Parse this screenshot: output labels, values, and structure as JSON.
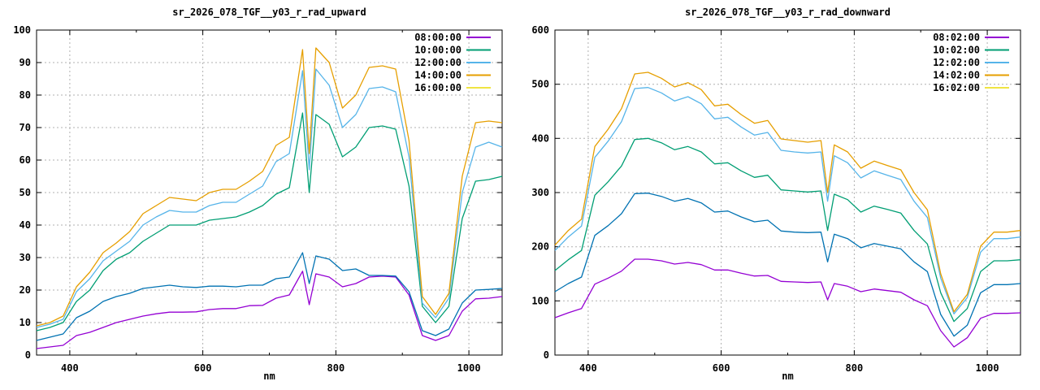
{
  "app": {
    "background": "#ffffff",
    "kind": "gnuplot spectral radiance screenshot"
  },
  "palette": {
    "purple": "#9400d3",
    "green": "#009e73",
    "skyblue": "#56b4e9",
    "orange": "#e69f00",
    "yellow": "#f0e442",
    "blue": "#0072b2",
    "grid_gray": "#b0b0b0",
    "axis_black": "#000000"
  },
  "chart_data": [
    {
      "type": "line",
      "title": "sr_2026_078_TGF__y03_r_rad_upward",
      "xlabel": "nm",
      "ylabel": "",
      "xlim": [
        350,
        1050
      ],
      "ylim": [
        0,
        100
      ],
      "xticks": [
        400,
        600,
        800,
        1000
      ],
      "xminor": [
        500,
        700,
        900
      ],
      "yticks": [
        0,
        10,
        20,
        30,
        40,
        50,
        60,
        70,
        80,
        90,
        100
      ],
      "grid": true,
      "legend_position": "top-right-inside",
      "wavelengths": [
        350,
        370,
        390,
        410,
        430,
        450,
        470,
        490,
        510,
        530,
        550,
        570,
        590,
        610,
        630,
        650,
        670,
        690,
        710,
        730,
        750,
        760,
        770,
        790,
        810,
        830,
        850,
        870,
        890,
        910,
        930,
        950,
        970,
        990,
        1010,
        1030,
        1050
      ],
      "series": [
        {
          "label": "08:00:00",
          "swatch_color": "#9400d3",
          "line_color": "#9400d3",
          "values": [
            2,
            2.5,
            3,
            6,
            7,
            8.5,
            10,
            11,
            12,
            12.7,
            13.2,
            13.2,
            13.3,
            14,
            14.3,
            14.3,
            15.2,
            15.3,
            17.5,
            18.5,
            25.8,
            15.5,
            25,
            24,
            21,
            22,
            24,
            24.3,
            24,
            18.5,
            6,
            4.5,
            6,
            13.5,
            17.3,
            17.5,
            18
          ]
        },
        {
          "label": "10:00:00",
          "swatch_color": "#009e73",
          "line_color": "#009e73",
          "values": [
            7.5,
            8.5,
            10,
            16.5,
            20,
            26,
            29.5,
            31.5,
            35,
            37.5,
            40,
            40,
            40,
            41.5,
            42,
            42.5,
            44,
            46,
            49.5,
            51.5,
            74.5,
            50,
            74,
            71,
            61,
            64,
            70,
            70.5,
            69.5,
            52,
            15,
            10,
            15,
            42,
            53.5,
            54,
            55
          ]
        },
        {
          "label": "12:00:00",
          "swatch_color": "#56b4e9",
          "line_color": "#56b4e9",
          "values": [
            8.5,
            9.5,
            11,
            19.5,
            23.5,
            29,
            32,
            35,
            40,
            42.5,
            44.5,
            44,
            44,
            46,
            47,
            47,
            49.5,
            52,
            59.5,
            62,
            87.5,
            57,
            88,
            83,
            70,
            74,
            82,
            82.5,
            81,
            61,
            16,
            11.5,
            17.5,
            50,
            64,
            65.5,
            64
          ]
        },
        {
          "label": "14:00:00",
          "swatch_color": "#e69f00",
          "line_color": "#e69f00",
          "values": [
            9,
            10,
            12,
            21,
            25.5,
            31.5,
            34.5,
            38,
            43.5,
            46,
            48.5,
            48,
            47.5,
            50,
            51,
            51,
            53.5,
            56.5,
            64.5,
            67,
            94,
            62,
            94.5,
            90,
            76,
            80,
            88.5,
            89,
            88,
            66,
            18,
            12.5,
            19,
            55,
            71.5,
            72,
            71.5
          ]
        },
        {
          "label": "16:00:00",
          "swatch_color": "#f0e442",
          "line_color": "#0072b2",
          "values": [
            4.5,
            5.5,
            6.5,
            11.5,
            13.5,
            16.5,
            18,
            19,
            20.5,
            21,
            21.5,
            21,
            20.8,
            21.2,
            21.2,
            21,
            21.5,
            21.5,
            23.5,
            24,
            31.5,
            22,
            30.5,
            29.5,
            26,
            26.5,
            24.5,
            24.5,
            24.3,
            19.5,
            7.5,
            6,
            8,
            16,
            20,
            20.2,
            20.5
          ]
        }
      ]
    },
    {
      "type": "line",
      "title": "sr_2026_078_TGF__y03_r_rad_downward",
      "xlabel": "nm",
      "ylabel": "",
      "xlim": [
        350,
        1050
      ],
      "ylim": [
        0,
        600
      ],
      "xticks": [
        400,
        600,
        800,
        1000
      ],
      "xminor": [
        500,
        700,
        900
      ],
      "yticks": [
        0,
        100,
        200,
        300,
        400,
        500,
        600
      ],
      "grid": true,
      "legend_position": "top-right-inside",
      "wavelengths": [
        350,
        370,
        390,
        410,
        430,
        450,
        470,
        490,
        510,
        530,
        550,
        570,
        590,
        610,
        630,
        650,
        670,
        690,
        710,
        730,
        750,
        760,
        770,
        790,
        810,
        830,
        850,
        870,
        890,
        910,
        930,
        950,
        970,
        990,
        1010,
        1030,
        1050
      ],
      "series": [
        {
          "label": "08:02:00",
          "swatch_color": "#9400d3",
          "line_color": "#9400d3",
          "values": [
            69,
            78,
            86,
            131,
            142,
            155,
            177,
            177,
            174,
            168,
            171,
            167,
            157,
            157,
            151,
            146,
            147,
            136,
            135,
            134,
            135,
            102,
            132,
            127,
            117,
            122,
            119,
            116,
            102,
            91,
            45,
            15,
            32,
            68,
            77,
            77,
            78
          ]
        },
        {
          "label": "10:02:00",
          "swatch_color": "#009e73",
          "line_color": "#009e73",
          "values": [
            156,
            176,
            193,
            295,
            320,
            349,
            398,
            400,
            392,
            379,
            385,
            375,
            353,
            355,
            340,
            328,
            332,
            305,
            303,
            301,
            303,
            230,
            297,
            287,
            264,
            275,
            269,
            262,
            230,
            205,
            115,
            62,
            86,
            154,
            174,
            174,
            176
          ]
        },
        {
          "label": "12:02:00",
          "swatch_color": "#56b4e9",
          "line_color": "#56b4e9",
          "values": [
            193,
            218,
            238,
            365,
            395,
            431,
            492,
            494,
            484,
            469,
            477,
            464,
            436,
            439,
            421,
            406,
            411,
            378,
            375,
            373,
            375,
            284,
            368,
            355,
            327,
            340,
            332,
            324,
            284,
            254,
            142,
            76,
            106,
            190,
            215,
            215,
            218
          ]
        },
        {
          "label": "14:02:00",
          "swatch_color": "#e69f00",
          "line_color": "#e69f00",
          "values": [
            203,
            230,
            251,
            385,
            417,
            455,
            519,
            522,
            511,
            495,
            503,
            490,
            460,
            463,
            444,
            428,
            433,
            399,
            396,
            393,
            396,
            300,
            388,
            375,
            345,
            358,
            350,
            342,
            300,
            268,
            150,
            80,
            112,
            201,
            227,
            227,
            230
          ]
        },
        {
          "label": "16:02:00",
          "swatch_color": "#f0e442",
          "line_color": "#0072b2",
          "values": [
            117,
            132,
            144,
            221,
            239,
            261,
            298,
            299,
            293,
            284,
            289,
            281,
            264,
            266,
            255,
            246,
            249,
            229,
            227,
            226,
            227,
            172,
            223,
            215,
            198,
            206,
            201,
            196,
            172,
            154,
            75,
            35,
            55,
            115,
            130,
            130,
            132
          ]
        }
      ]
    }
  ]
}
